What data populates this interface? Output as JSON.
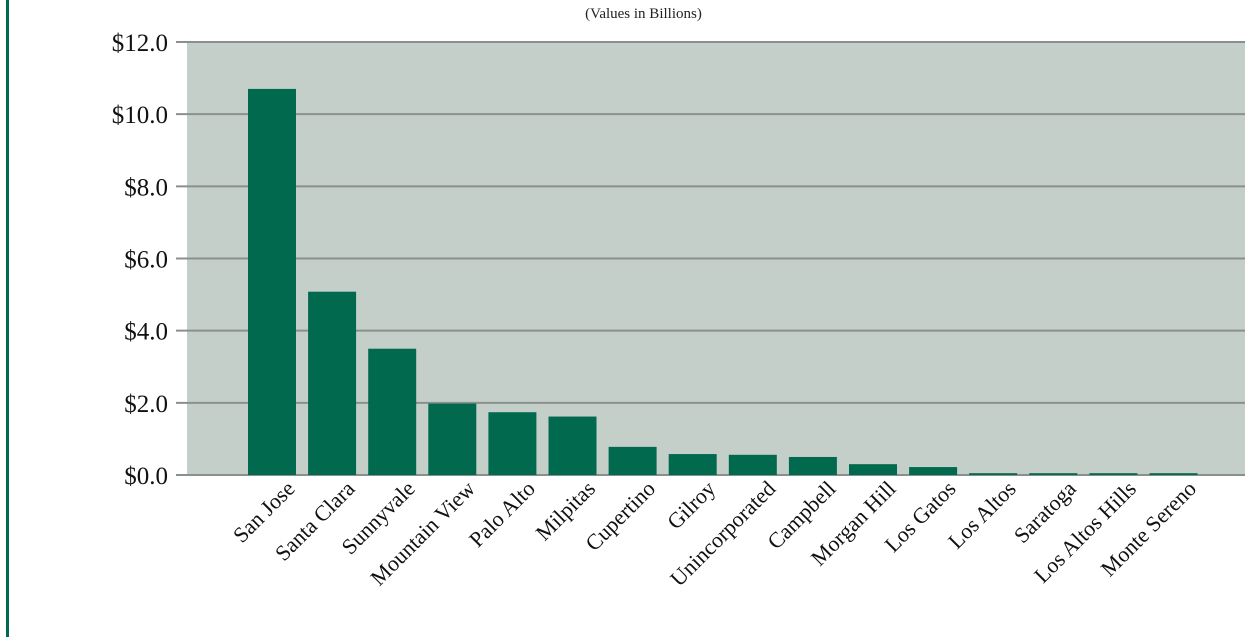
{
  "chart_data": {
    "type": "bar",
    "title": "",
    "subtitle": "(Values in Billions)",
    "xlabel": "",
    "ylabel": "",
    "ylim": [
      0,
      12
    ],
    "y_ticks": [
      0,
      2,
      4,
      6,
      8,
      10,
      12
    ],
    "y_tick_labels": [
      "$0.0",
      "$2.0",
      "$4.0",
      "$6.0",
      "$8.0",
      "$10.0",
      "$12.0"
    ],
    "grid": true,
    "categories": [
      "San Jose",
      "Santa Clara",
      "Sunnyvale",
      "Mountain View",
      "Palo Alto",
      "Milpitas",
      "Cupertino",
      "Gilroy",
      "Unincorporated",
      "Campbell",
      "Morgan Hill",
      "Los Gatos",
      "Los Altos",
      "Saratoga",
      "Los Altos Hills",
      "Monte Sereno"
    ],
    "values": [
      10.7,
      5.08,
      3.5,
      1.98,
      1.74,
      1.62,
      0.78,
      0.58,
      0.56,
      0.5,
      0.3,
      0.22,
      0.05,
      0.05,
      0.05,
      0.05
    ],
    "colors": {
      "bar": "#00694e",
      "plot_bg": "#c5cfca",
      "grid": "#8a908d",
      "frame": "#00694e"
    }
  }
}
